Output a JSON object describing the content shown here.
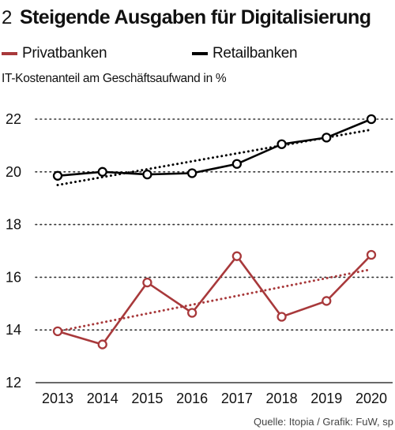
{
  "header": {
    "number": "2",
    "title": "Steigende Ausgaben für Digitalisierung"
  },
  "legend": [
    {
      "label": "Privatbanken",
      "color": "#a8393b"
    },
    {
      "label": "Retailbanken",
      "color": "#000000"
    }
  ],
  "source": "Quelle: Itopia / Grafik: FuW, sp",
  "chart_data": {
    "type": "line",
    "title": "Steigende Ausgaben für Digitalisierung",
    "xlabel": "",
    "ylabel": "IT-Kostenanteil am Geschäftsaufwand in %",
    "categories": [
      "2013",
      "2014",
      "2015",
      "2016",
      "2017",
      "2018",
      "2019",
      "2020"
    ],
    "ylim": [
      12,
      22
    ],
    "yticks": [
      12,
      14,
      16,
      18,
      20,
      22
    ],
    "grid": "horizontal-dotted",
    "legend_position": "top",
    "series": [
      {
        "name": "Privatbanken",
        "color": "#a8393b",
        "values": [
          13.95,
          13.45,
          15.8,
          14.65,
          16.8,
          14.5,
          15.1,
          16.85
        ],
        "trend": [
          13.95,
          16.3
        ]
      },
      {
        "name": "Retailbanken",
        "color": "#000000",
        "values": [
          19.85,
          20.0,
          19.9,
          19.95,
          20.3,
          21.05,
          21.3,
          22.0
        ],
        "trend": [
          19.5,
          21.6
        ]
      }
    ]
  }
}
